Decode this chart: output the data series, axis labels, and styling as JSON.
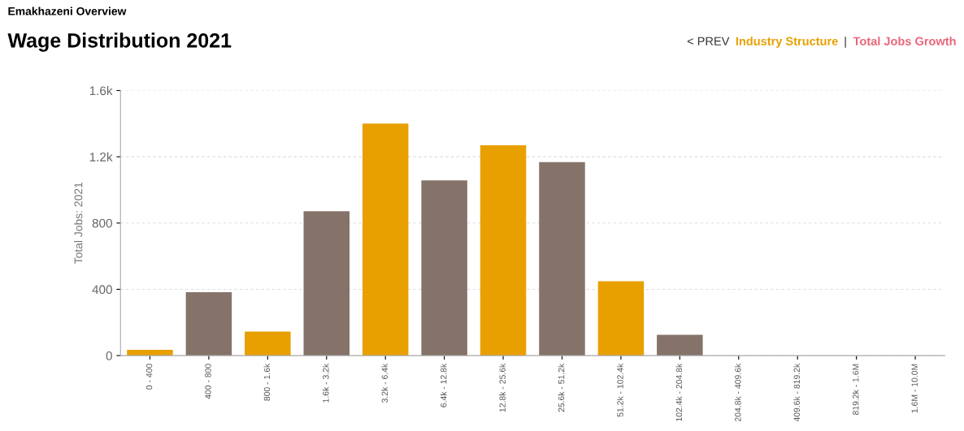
{
  "chart_data": {
    "type": "bar",
    "subtitle": "Emakhazeni Overview",
    "title": "Wage Distribution 2021",
    "ylabel": "Total Jobs: 2021",
    "categories": [
      "0 - 400",
      "400 - 800",
      "800 - 1.6k",
      "1.6k - 3.2k",
      "3.2k - 6.4k",
      "6.4k - 12.8k",
      "12.8k - 25.6k",
      "25.6k - 51.2k",
      "51.2k - 102.4k",
      "102.4k - 204.8k",
      "204.8k - 409.6k",
      "409.6k - 819.2k",
      "819.2k - 1.6M",
      "1.6M - 10.0M"
    ],
    "values": [
      35,
      382,
      145,
      871,
      1401,
      1058,
      1269,
      1168,
      449,
      125,
      0,
      0,
      0,
      0
    ],
    "colors": [
      "#e8a000",
      "#857369",
      "#e8a000",
      "#857369",
      "#e8a000",
      "#857369",
      "#e8a000",
      "#857369",
      "#e8a000",
      "#857369",
      "#e8a000",
      "#857369",
      "#e8a000",
      "#857369"
    ],
    "ylim": [
      0,
      1600
    ],
    "yticks": [
      0,
      400,
      800,
      {
        "value": 1200,
        "label": "1.2k"
      },
      {
        "value": 1600,
        "label": "1.6k"
      }
    ],
    "grid": "y",
    "annotations": [
      "< PREV",
      "Industry Structure",
      "|",
      "Total Jobs Growth"
    ]
  }
}
